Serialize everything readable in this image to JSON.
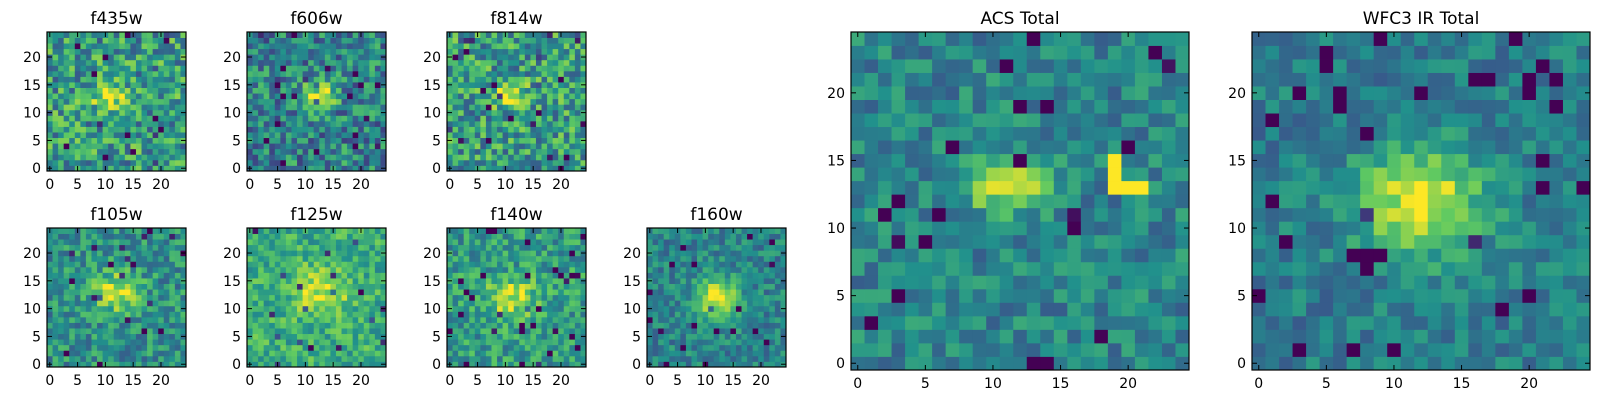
{
  "chart_data": [
    {
      "type": "heatmap",
      "title": "f435w",
      "x_ticks": [
        0,
        5,
        10,
        15,
        20
      ],
      "y_ticks": [
        0,
        5,
        10,
        15,
        20
      ],
      "xlim": [
        -0.5,
        24.5
      ],
      "ylim": [
        -0.5,
        24.5
      ],
      "grid": false,
      "grid_size": 25,
      "blob_center": [
        11,
        13
      ],
      "blob_spread": [
        2.2,
        1.4
      ],
      "blob_amplitude": 0.45,
      "background_level": 0.55,
      "noise": 0.28,
      "seed": 11
    },
    {
      "type": "heatmap",
      "title": "f606w",
      "x_ticks": [
        0,
        5,
        10,
        15,
        20
      ],
      "y_ticks": [
        0,
        5,
        10,
        15,
        20
      ],
      "xlim": [
        -0.5,
        24.5
      ],
      "ylim": [
        -0.5,
        24.5
      ],
      "grid": false,
      "grid_size": 25,
      "blob_center": [
        12,
        13
      ],
      "blob_spread": [
        2.4,
        1.6
      ],
      "blob_amplitude": 0.55,
      "background_level": 0.45,
      "noise": 0.26,
      "seed": 23
    },
    {
      "type": "heatmap",
      "title": "f814w",
      "x_ticks": [
        0,
        5,
        10,
        15,
        20
      ],
      "y_ticks": [
        0,
        5,
        10,
        15,
        20
      ],
      "xlim": [
        -0.5,
        24.5
      ],
      "ylim": [
        -0.5,
        24.5
      ],
      "grid": false,
      "grid_size": 25,
      "blob_center": [
        11,
        13
      ],
      "blob_spread": [
        2.2,
        1.4
      ],
      "blob_amplitude": 0.45,
      "background_level": 0.55,
      "noise": 0.28,
      "seed": 37
    },
    {
      "type": "heatmap",
      "title": "f105w",
      "x_ticks": [
        0,
        5,
        10,
        15,
        20
      ],
      "y_ticks": [
        0,
        5,
        10,
        15,
        20
      ],
      "xlim": [
        -0.5,
        24.5
      ],
      "ylim": [
        -0.5,
        24.5
      ],
      "grid": false,
      "grid_size": 25,
      "blob_center": [
        12,
        13
      ],
      "blob_spread": [
        3.0,
        2.6
      ],
      "blob_amplitude": 0.4,
      "background_level": 0.5,
      "noise": 0.2,
      "seed": 41
    },
    {
      "type": "heatmap",
      "title": "f125w",
      "x_ticks": [
        0,
        5,
        10,
        15,
        20
      ],
      "y_ticks": [
        0,
        5,
        10,
        15,
        20
      ],
      "xlim": [
        -0.5,
        24.5
      ],
      "ylim": [
        -0.5,
        24.5
      ],
      "grid": false,
      "grid_size": 25,
      "blob_center": [
        13,
        13
      ],
      "blob_spread": [
        3.5,
        3.0
      ],
      "blob_amplitude": 0.3,
      "background_level": 0.62,
      "noise": 0.18,
      "seed": 53
    },
    {
      "type": "heatmap",
      "title": "f140w",
      "x_ticks": [
        0,
        5,
        10,
        15,
        20
      ],
      "y_ticks": [
        0,
        5,
        10,
        15,
        20
      ],
      "xlim": [
        -0.5,
        24.5
      ],
      "ylim": [
        -0.5,
        24.5
      ],
      "grid": false,
      "grid_size": 25,
      "blob_center": [
        11,
        12
      ],
      "blob_spread": [
        3.2,
        2.4
      ],
      "blob_amplitude": 0.38,
      "background_level": 0.55,
      "noise": 0.2,
      "seed": 67
    },
    {
      "type": "heatmap",
      "title": "f160w",
      "x_ticks": [
        0,
        5,
        10,
        15,
        20
      ],
      "y_ticks": [
        0,
        5,
        10,
        15,
        20
      ],
      "xlim": [
        -0.5,
        24.5
      ],
      "ylim": [
        -0.5,
        24.5
      ],
      "grid": false,
      "grid_size": 25,
      "blob_center": [
        12,
        12
      ],
      "blob_spread": [
        2.6,
        2.6
      ],
      "blob_amplitude": 0.55,
      "background_level": 0.45,
      "noise": 0.16,
      "seed": 79
    },
    {
      "type": "heatmap",
      "title": "ACS Total",
      "x_ticks": [
        0,
        5,
        10,
        15,
        20
      ],
      "y_ticks": [
        0,
        5,
        10,
        15,
        20
      ],
      "xlim": [
        -0.5,
        24.5
      ],
      "ylim": [
        -0.5,
        24.5
      ],
      "grid": false,
      "grid_size": 25,
      "blob_center": [
        11,
        13
      ],
      "blob_spread": [
        2.0,
        1.2
      ],
      "blob_amplitude": 0.55,
      "background_level": 0.45,
      "noise": 0.16,
      "seed": 97,
      "hot_pixels": [
        [
          19,
          15
        ],
        [
          19,
          14
        ],
        [
          19,
          13
        ],
        [
          20,
          13
        ],
        [
          21,
          13
        ]
      ]
    },
    {
      "type": "heatmap",
      "title": "WFC3 IR Total",
      "x_ticks": [
        0,
        5,
        10,
        15,
        20
      ],
      "y_ticks": [
        0,
        5,
        10,
        15,
        20
      ],
      "xlim": [
        -0.5,
        24.5
      ],
      "ylim": [
        -0.5,
        24.5
      ],
      "grid": false,
      "grid_size": 25,
      "blob_center": [
        12,
        12
      ],
      "blob_spread": [
        3.2,
        2.8
      ],
      "blob_amplitude": 0.55,
      "background_level": 0.42,
      "noise": 0.14,
      "seed": 109,
      "cold_pixels": [
        [
          8,
          7
        ],
        [
          9,
          8
        ],
        [
          8,
          8
        ],
        [
          21,
          22
        ],
        [
          22,
          21
        ],
        [
          20,
          21
        ],
        [
          20,
          20
        ]
      ]
    }
  ],
  "colormap": [
    "#440154",
    "#3b528b",
    "#21918c",
    "#5ec962",
    "#fde725"
  ]
}
